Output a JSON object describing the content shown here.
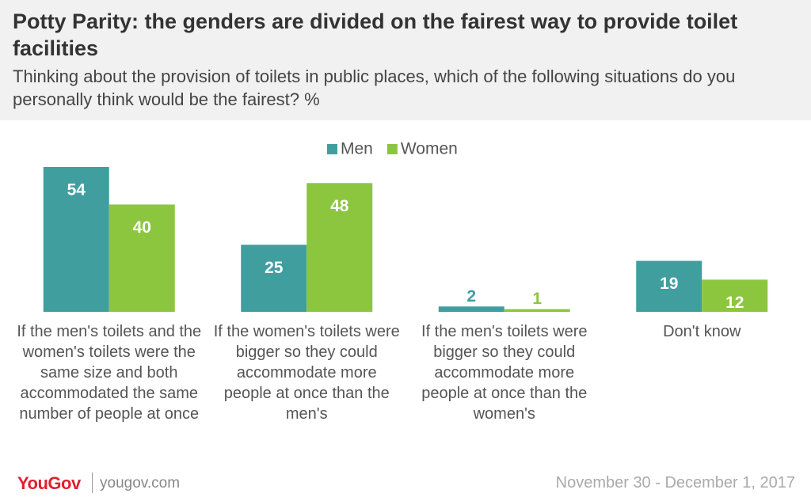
{
  "chart_data": {
    "type": "bar",
    "title": "Potty Parity: the genders are divided on the fairest way to provide toilet facilities",
    "subtitle": "Thinking about the provision of toilets in public places, which of the following situations do you personally think would be the fairest? %",
    "categories": [
      "If the men's toilets and the women's toilets were the same size and both accommodated the same number of people at once",
      "If the women's toilets were bigger so they could accommodate more people at once than the men's",
      "If the men's toilets were bigger so they could accommodate more people at once than the women's",
      "Don't know"
    ],
    "series": [
      {
        "name": "Men",
        "color": "#409e9f",
        "values": [
          54,
          25,
          2,
          19
        ]
      },
      {
        "name": "Women",
        "color": "#8cc63f",
        "values": [
          40,
          48,
          1,
          12
        ]
      }
    ]
  },
  "footer": {
    "logo": "YouGov",
    "site": "yougov.com",
    "date": "November 30 - December 1, 2017"
  }
}
